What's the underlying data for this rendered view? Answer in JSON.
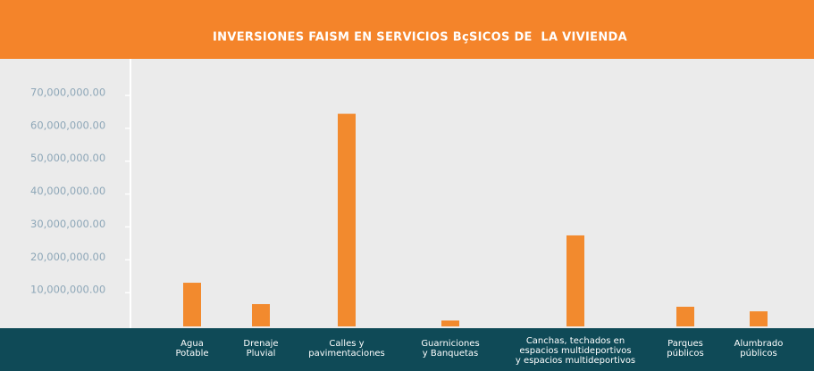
{
  "chart_data": {
    "type": "bar",
    "title": "INVERSIONES FAISM EN SERVICIOS BçSICOS DE  LA VIVIENDA",
    "categories": [
      [
        "Agua",
        "Potable"
      ],
      [
        "Drenaje",
        "Pluvial"
      ],
      [
        "Calles y",
        "pavimentaciones"
      ],
      [
        "Guarniciones",
        "y Banquetas"
      ],
      [
        "Canchas, techados en",
        "espacios multideportivos",
        "y espacios multideportivos"
      ],
      [
        "Parques",
        "públicos"
      ],
      [
        "Alumbrado",
        "públicos"
      ]
    ],
    "values": [
      12200000,
      5700000,
      63600000,
      700000,
      26600000,
      4900000,
      3500000
    ],
    "color": "#f28a2e",
    "ylim": [
      0,
      70000000
    ],
    "yticks": [
      {
        "value": 10000000,
        "label": "10,000,000.00"
      },
      {
        "value": 20000000,
        "label": "20,000,000.00"
      },
      {
        "value": 30000000,
        "label": "30,000,000.00"
      },
      {
        "value": 40000000,
        "label": "40,000,000.00"
      },
      {
        "value": 50000000,
        "label": "50,000,000.00"
      },
      {
        "value": 60000000,
        "label": "60,000,000.00"
      },
      {
        "value": 70000000,
        "label": "70,000,000.00"
      }
    ]
  }
}
